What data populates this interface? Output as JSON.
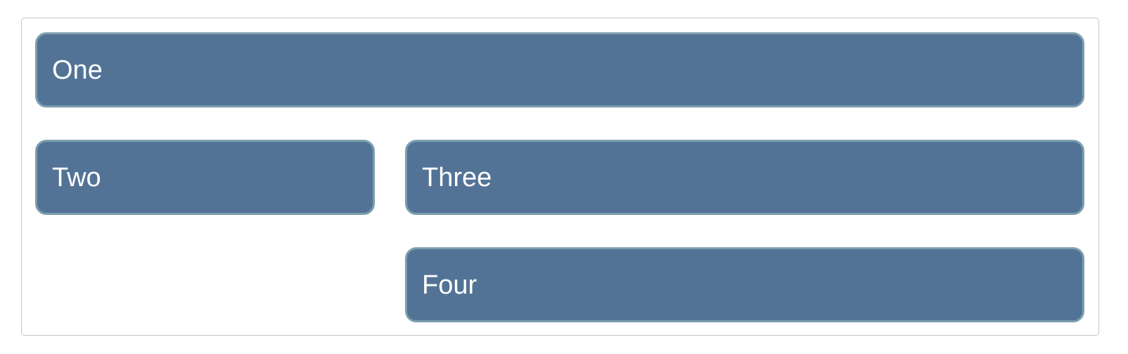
{
  "boxes": [
    {
      "label": "One"
    },
    {
      "label": "Two"
    },
    {
      "label": "Three"
    },
    {
      "label": "Four"
    }
  ],
  "colors": {
    "box_fill": "#537396",
    "box_border": "#7c9eae",
    "container_border": "#c4c4c4",
    "text": "#ffffff"
  }
}
